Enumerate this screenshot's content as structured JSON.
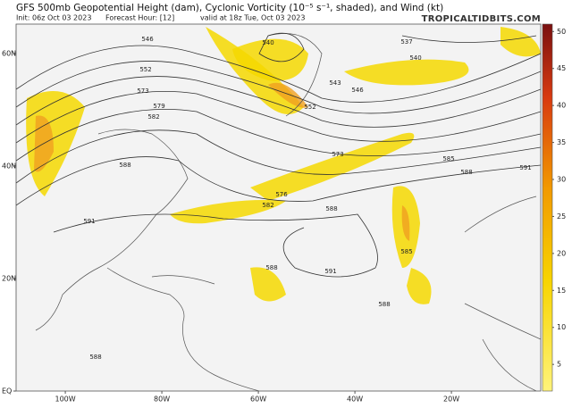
{
  "header": {
    "title": "GFS 500mb Geopotential Height (dam), Cyclonic Vorticity (10⁻⁵ s⁻¹, shaded), and Wind (kt)",
    "init": "Init: 06z Oct 03 2023",
    "forecast_hour": "Forecast Hour: [12]",
    "valid": "valid at 18z Tue, Oct 03 2023",
    "site": "TROPICALTIDBITS.COM"
  },
  "map": {
    "lonlim": [
      -110.2,
      -1.5
    ],
    "latlim": [
      0,
      65.2
    ],
    "lon_ticks": [
      {
        "value": -100,
        "label": "100W"
      },
      {
        "value": -80,
        "label": "80W"
      },
      {
        "value": -60,
        "label": "60W"
      },
      {
        "value": -40,
        "label": "40W"
      },
      {
        "value": -20,
        "label": "20W"
      }
    ],
    "lat_ticks": [
      {
        "value": 60,
        "label": "60N"
      },
      {
        "value": 40,
        "label": "40N"
      },
      {
        "value": 20,
        "label": "20N"
      },
      {
        "value": 0,
        "label": "EQ"
      }
    ],
    "contour_labels": [
      540,
      537,
      540,
      546,
      543,
      552,
      573,
      585,
      588,
      591,
      576,
      582,
      588,
      591,
      588,
      591,
      585,
      588,
      588,
      573,
      579,
      582,
      588,
      546,
      552
    ]
  },
  "colorbar": {
    "clim": [
      1.4,
      51
    ],
    "ticks": [
      5,
      10,
      15,
      20,
      25,
      30,
      35,
      40,
      45,
      50
    ]
  }
}
